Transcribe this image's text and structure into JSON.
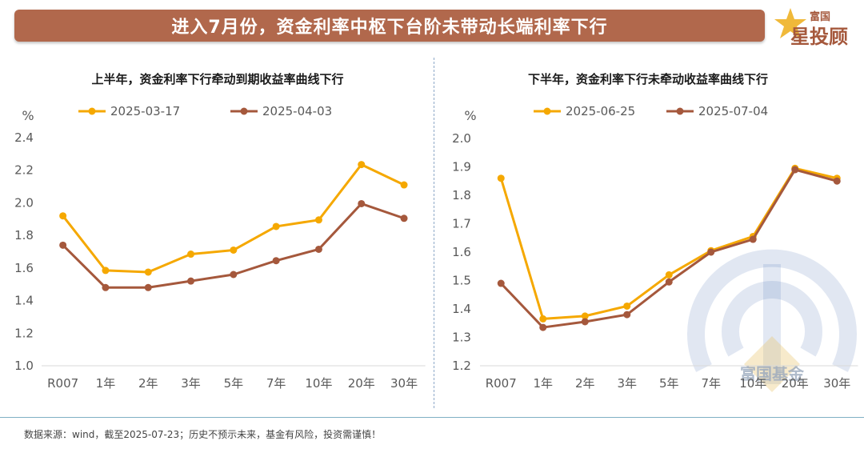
{
  "banner": {
    "title": "进入7月份，资金利率中枢下台阶未带动长端利率下行"
  },
  "logo": {
    "top_text": "富国",
    "main_text": "星投顾"
  },
  "footnote": "数据来源：wind，截至2025-07-23；历史不预示未来，基金有风险，投资需谨慎！",
  "watermark_text": "富国基金",
  "colors": {
    "series_a": "#f5a800",
    "series_b": "#a5583c",
    "banner": "#b1684c"
  },
  "chart_data": [
    {
      "type": "line",
      "title": "上半年，资金利率下行牵动到期收益率曲线下行",
      "unit": "%",
      "categories": [
        "R007",
        "1年",
        "2年",
        "3年",
        "5年",
        "7年",
        "10年",
        "20年",
        "30年"
      ],
      "ylim": [
        1.0,
        2.4
      ],
      "yticks": [
        "1.0",
        "1.2",
        "1.4",
        "1.6",
        "1.8",
        "2.0",
        "2.2",
        "2.4"
      ],
      "legend_position": "top",
      "series": [
        {
          "name": "2025-03-17",
          "values": [
            1.92,
            1.585,
            1.575,
            1.685,
            1.71,
            1.855,
            1.895,
            2.235,
            2.11
          ]
        },
        {
          "name": "2025-04-03",
          "values": [
            1.74,
            1.48,
            1.48,
            1.52,
            1.56,
            1.645,
            1.715,
            1.995,
            1.905
          ]
        }
      ]
    },
    {
      "type": "line",
      "title": "下半年，资金利率下行未牵动收益率曲线下行",
      "unit": "%",
      "categories": [
        "R007",
        "1年",
        "2年",
        "3年",
        "5年",
        "7年",
        "10年",
        "20年",
        "30年"
      ],
      "ylim": [
        1.2,
        2.0
      ],
      "yticks": [
        "1.2",
        "1.3",
        "1.4",
        "1.5",
        "1.6",
        "1.7",
        "1.8",
        "1.9",
        "2.0"
      ],
      "legend_position": "top",
      "series": [
        {
          "name": "2025-06-25",
          "values": [
            1.86,
            1.365,
            1.375,
            1.41,
            1.52,
            1.605,
            1.655,
            1.895,
            1.86
          ]
        },
        {
          "name": "2025-07-04",
          "values": [
            1.49,
            1.335,
            1.355,
            1.38,
            1.495,
            1.6,
            1.645,
            1.89,
            1.85
          ]
        }
      ]
    }
  ]
}
